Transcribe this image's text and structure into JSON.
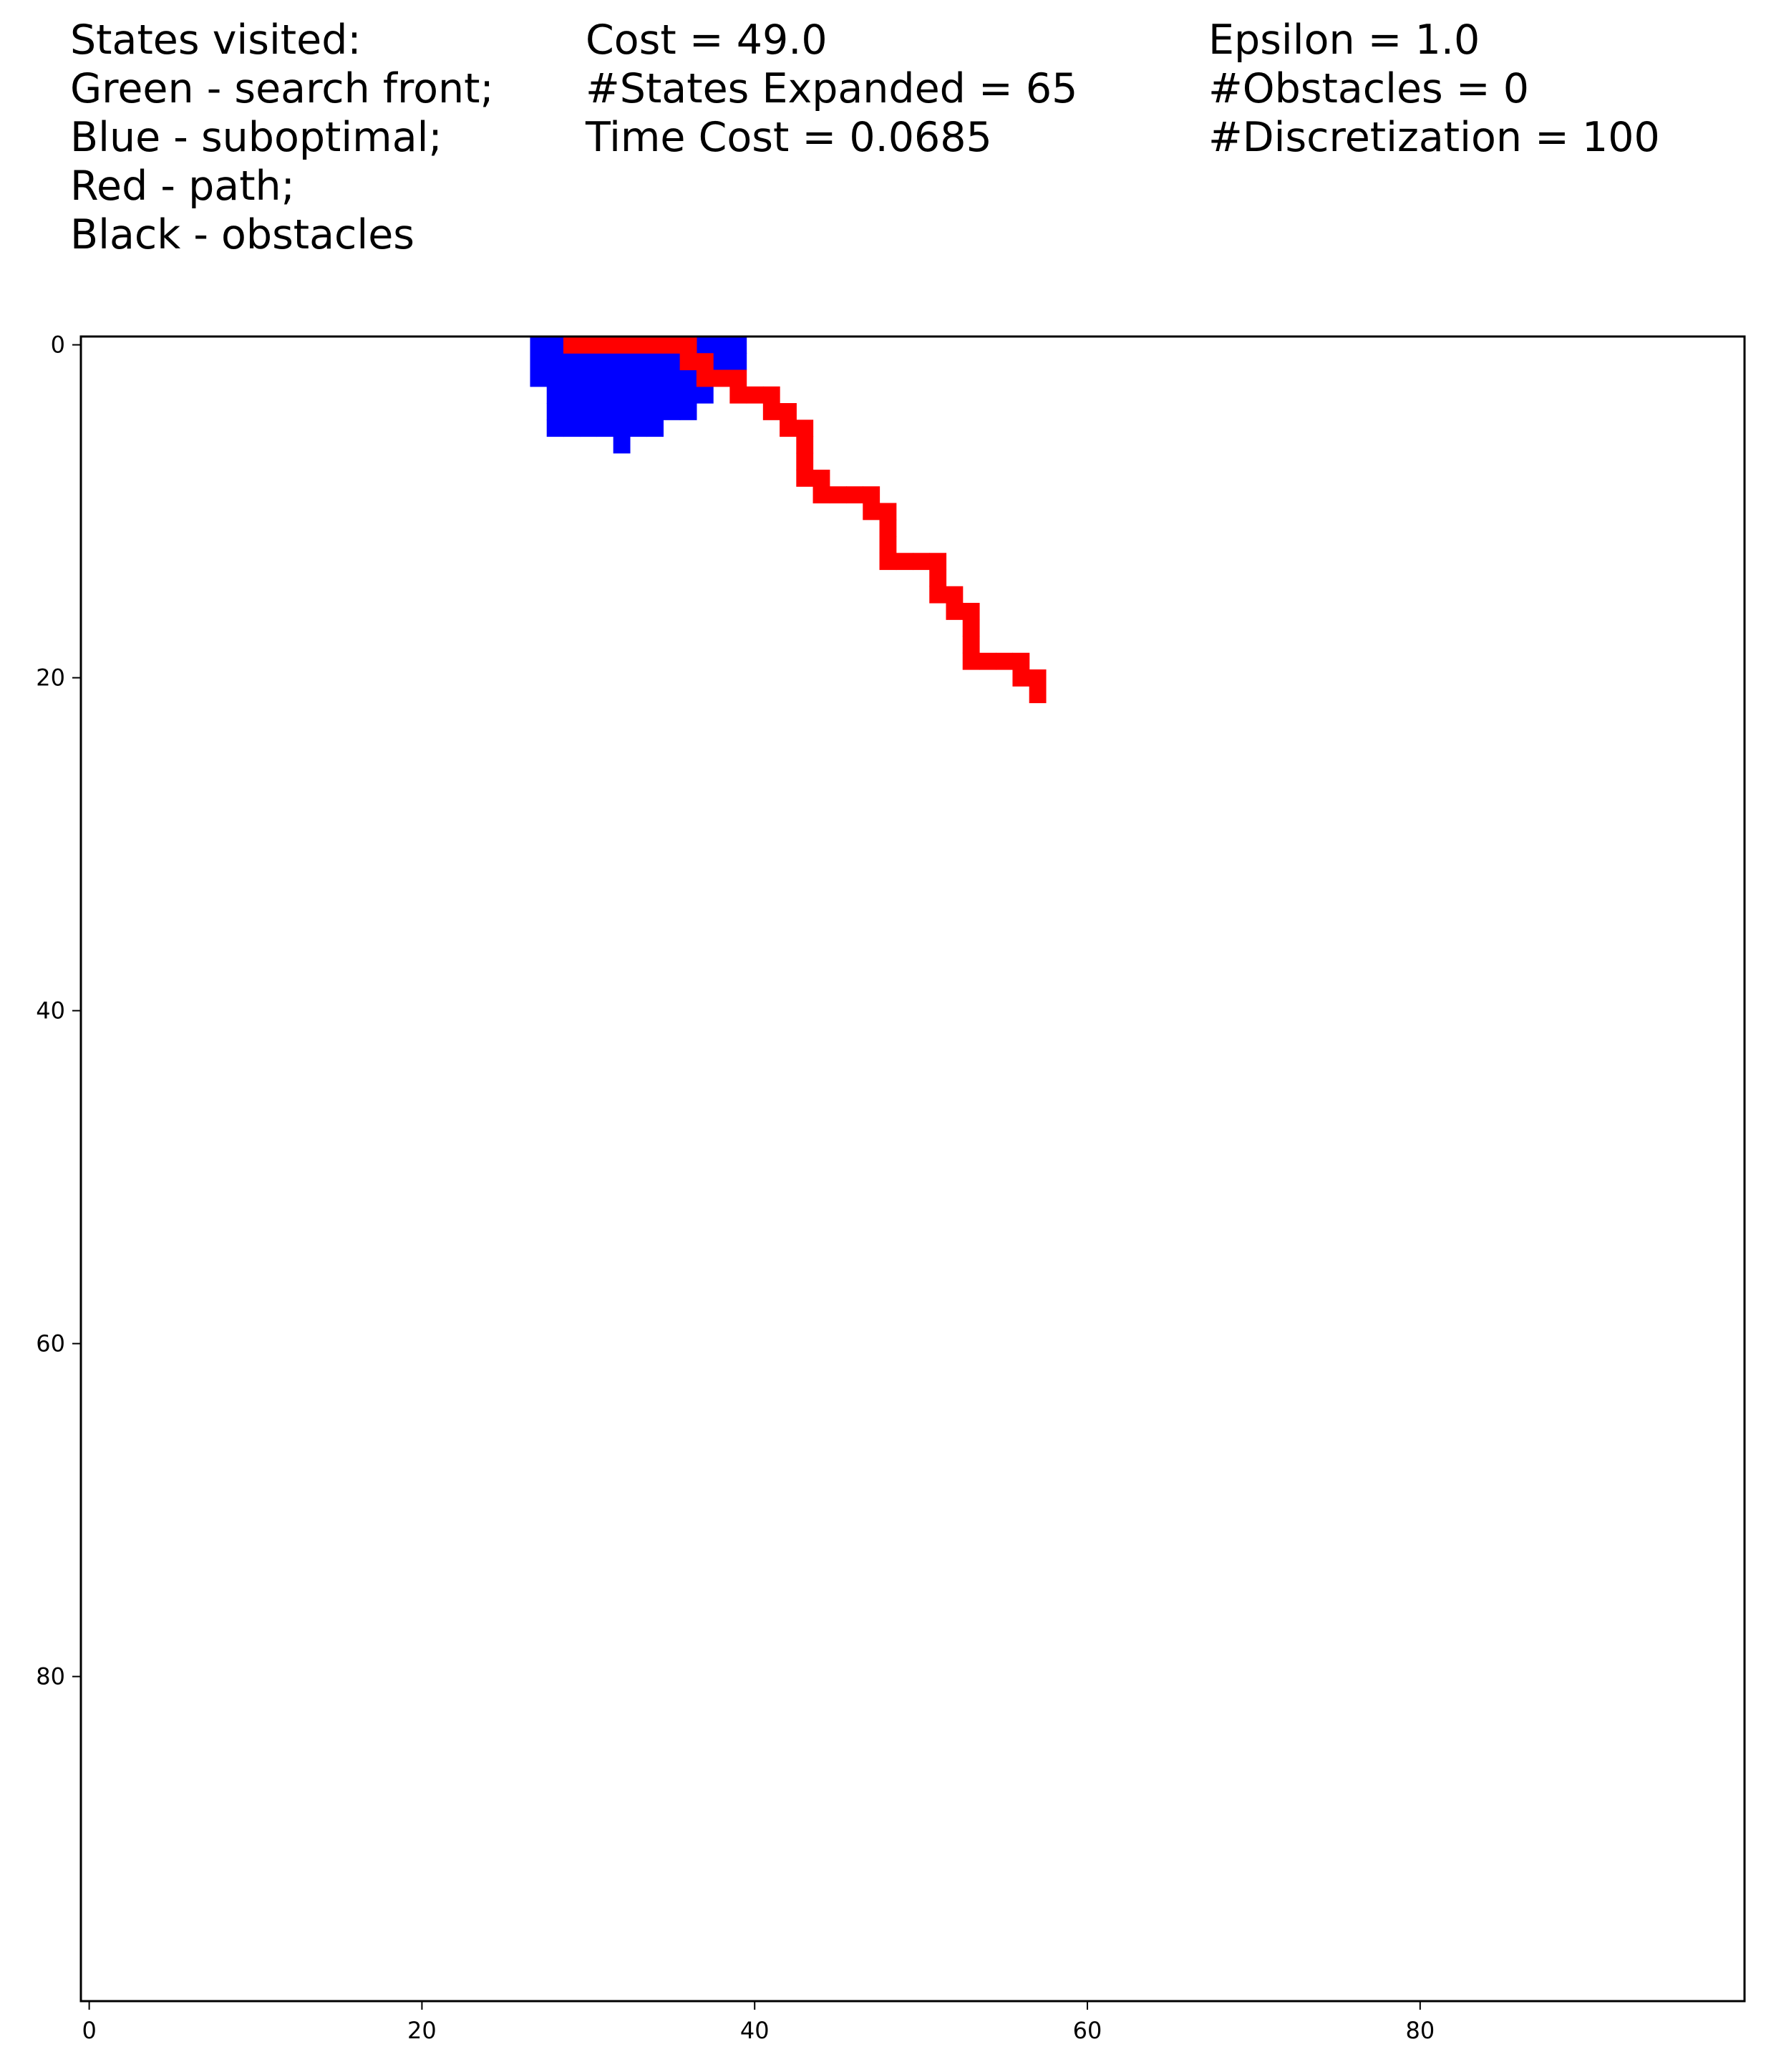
{
  "legend": {
    "lines": [
      "States visited:",
      "Green - search front;",
      "Blue - suboptimal;",
      "Red - path;",
      "Black - obstacles"
    ]
  },
  "stats": {
    "lines": [
      "Cost = 49.0",
      "#States Expanded = 65",
      "Time Cost = 0.0685"
    ]
  },
  "params": {
    "lines": [
      "Epsilon = 1.0",
      "#Obstacles = 0",
      "#Discretization = 100"
    ]
  },
  "colors": {
    "background": "#ffffff",
    "suboptimal": "#0000ff",
    "path": "#ff0000",
    "axis": "#000000"
  },
  "chart_data": {
    "type": "heatmap",
    "grid_size": 100,
    "xlim": [
      -0.5,
      99.5
    ],
    "ylim": [
      99.5,
      -0.5
    ],
    "xticks": [
      0,
      20,
      40,
      60,
      80
    ],
    "yticks": [
      0,
      20,
      40,
      60,
      80
    ],
    "grid": false,
    "suboptimal_cells": [
      [
        27,
        0
      ],
      [
        28,
        0
      ],
      [
        37,
        0
      ],
      [
        38,
        0
      ],
      [
        39,
        0
      ],
      [
        27,
        1
      ],
      [
        28,
        1
      ],
      [
        29,
        1
      ],
      [
        30,
        1
      ],
      [
        31,
        1
      ],
      [
        32,
        1
      ],
      [
        33,
        1
      ],
      [
        34,
        1
      ],
      [
        35,
        1
      ],
      [
        38,
        1
      ],
      [
        39,
        1
      ],
      [
        27,
        2
      ],
      [
        28,
        2
      ],
      [
        29,
        2
      ],
      [
        30,
        2
      ],
      [
        31,
        2
      ],
      [
        32,
        2
      ],
      [
        33,
        2
      ],
      [
        34,
        2
      ],
      [
        35,
        2
      ],
      [
        36,
        2
      ],
      [
        28,
        3
      ],
      [
        29,
        3
      ],
      [
        30,
        3
      ],
      [
        31,
        3
      ],
      [
        32,
        3
      ],
      [
        33,
        3
      ],
      [
        34,
        3
      ],
      [
        35,
        3
      ],
      [
        36,
        3
      ],
      [
        37,
        3
      ],
      [
        28,
        4
      ],
      [
        29,
        4
      ],
      [
        30,
        4
      ],
      [
        31,
        4
      ],
      [
        32,
        4
      ],
      [
        33,
        4
      ],
      [
        34,
        4
      ],
      [
        35,
        4
      ],
      [
        36,
        4
      ],
      [
        28,
        5
      ],
      [
        29,
        5
      ],
      [
        30,
        5
      ],
      [
        31,
        5
      ],
      [
        32,
        5
      ],
      [
        33,
        5
      ],
      [
        34,
        5
      ],
      [
        32,
        6
      ]
    ],
    "path_cells": [
      [
        29,
        0
      ],
      [
        30,
        0
      ],
      [
        31,
        0
      ],
      [
        32,
        0
      ],
      [
        33,
        0
      ],
      [
        34,
        0
      ],
      [
        35,
        0
      ],
      [
        36,
        0
      ],
      [
        36,
        1
      ],
      [
        37,
        1
      ],
      [
        37,
        2
      ],
      [
        38,
        2
      ],
      [
        39,
        2
      ],
      [
        39,
        3
      ],
      [
        40,
        3
      ],
      [
        41,
        3
      ],
      [
        41,
        4
      ],
      [
        42,
        4
      ],
      [
        42,
        5
      ],
      [
        43,
        5
      ],
      [
        43,
        6
      ],
      [
        43,
        7
      ],
      [
        43,
        8
      ],
      [
        44,
        8
      ],
      [
        44,
        9
      ],
      [
        45,
        9
      ],
      [
        46,
        9
      ],
      [
        47,
        9
      ],
      [
        47,
        10
      ],
      [
        48,
        10
      ],
      [
        48,
        11
      ],
      [
        48,
        12
      ],
      [
        48,
        13
      ],
      [
        49,
        13
      ],
      [
        50,
        13
      ],
      [
        51,
        13
      ],
      [
        51,
        14
      ],
      [
        51,
        15
      ],
      [
        52,
        15
      ],
      [
        52,
        16
      ],
      [
        53,
        16
      ],
      [
        53,
        17
      ],
      [
        53,
        18
      ],
      [
        53,
        19
      ],
      [
        54,
        19
      ],
      [
        55,
        19
      ],
      [
        56,
        19
      ],
      [
        56,
        20
      ],
      [
        57,
        20
      ],
      [
        57,
        21
      ]
    ]
  }
}
